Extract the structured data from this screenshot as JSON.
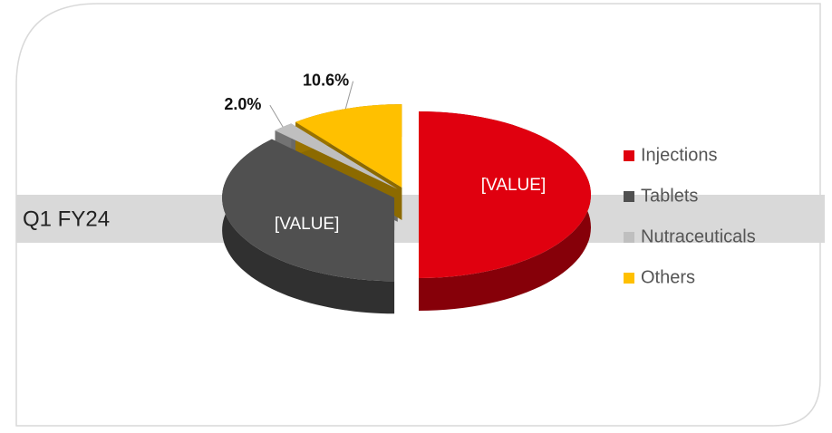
{
  "chart_data": {
    "type": "pie3d",
    "title": "Q1 FY24",
    "categories": [
      "Injections",
      "Tablets",
      "Nutraceuticals",
      "Others"
    ],
    "values": [
      50,
      37.4,
      2.0,
      10.6
    ],
    "value_labels": [
      "[VALUE]",
      "[VALUE]",
      "2.0%",
      "10.6%"
    ],
    "colors": [
      "#e0000f",
      "#505050",
      "#bfbfbf",
      "#ffc000"
    ],
    "legend": "right"
  }
}
